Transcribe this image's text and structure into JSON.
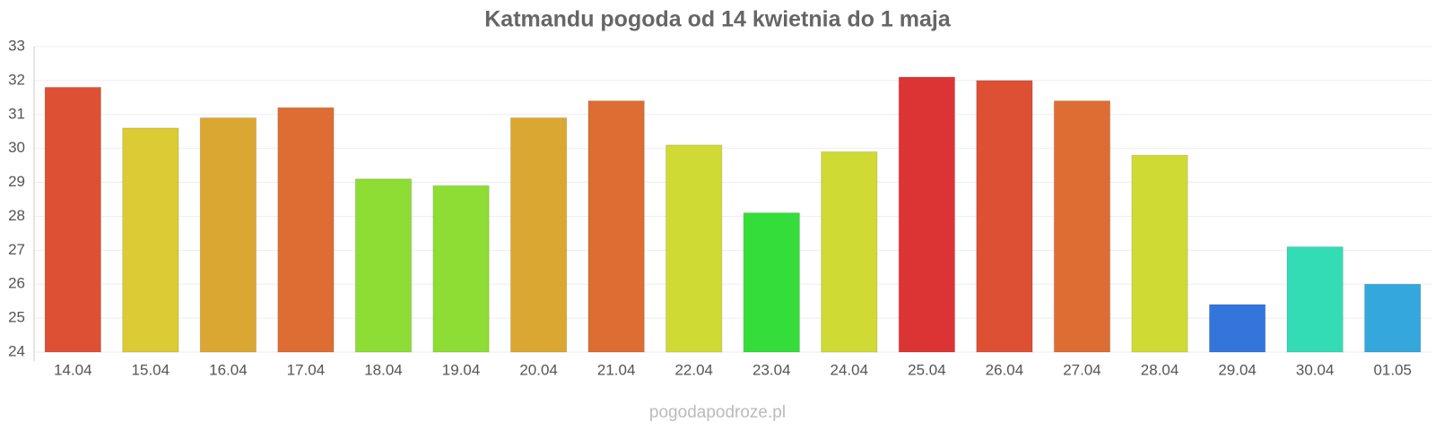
{
  "chart_data": {
    "type": "bar",
    "title": "Katmandu pogoda od 14 kwietnia do 1 maja",
    "categories": [
      "14.04",
      "15.04",
      "16.04",
      "17.04",
      "18.04",
      "19.04",
      "20.04",
      "21.04",
      "22.04",
      "23.04",
      "24.04",
      "25.04",
      "26.04",
      "27.04",
      "28.04",
      "29.04",
      "30.04",
      "01.05"
    ],
    "values": [
      31.8,
      30.6,
      30.9,
      31.2,
      29.1,
      28.9,
      30.9,
      31.4,
      30.1,
      28.1,
      29.9,
      32.1,
      32.0,
      31.4,
      29.8,
      25.4,
      27.1,
      26.0
    ],
    "colors": [
      "#dd5033",
      "#dccb34",
      "#dba733",
      "#dd6d33",
      "#8ddd35",
      "#8ddd35",
      "#dba733",
      "#dd6d33",
      "#cfdb34",
      "#34dd39",
      "#cfdb34",
      "#dc3434",
      "#dd5033",
      "#dd6d33",
      "#cfdb34",
      "#3475dc",
      "#34dcb6",
      "#34a7dc"
    ],
    "ylim": [
      24,
      33
    ],
    "yticks": [
      24,
      25,
      26,
      27,
      28,
      29,
      30,
      31,
      32,
      33
    ],
    "grid": true,
    "source": "pogodapodroze.pl"
  }
}
